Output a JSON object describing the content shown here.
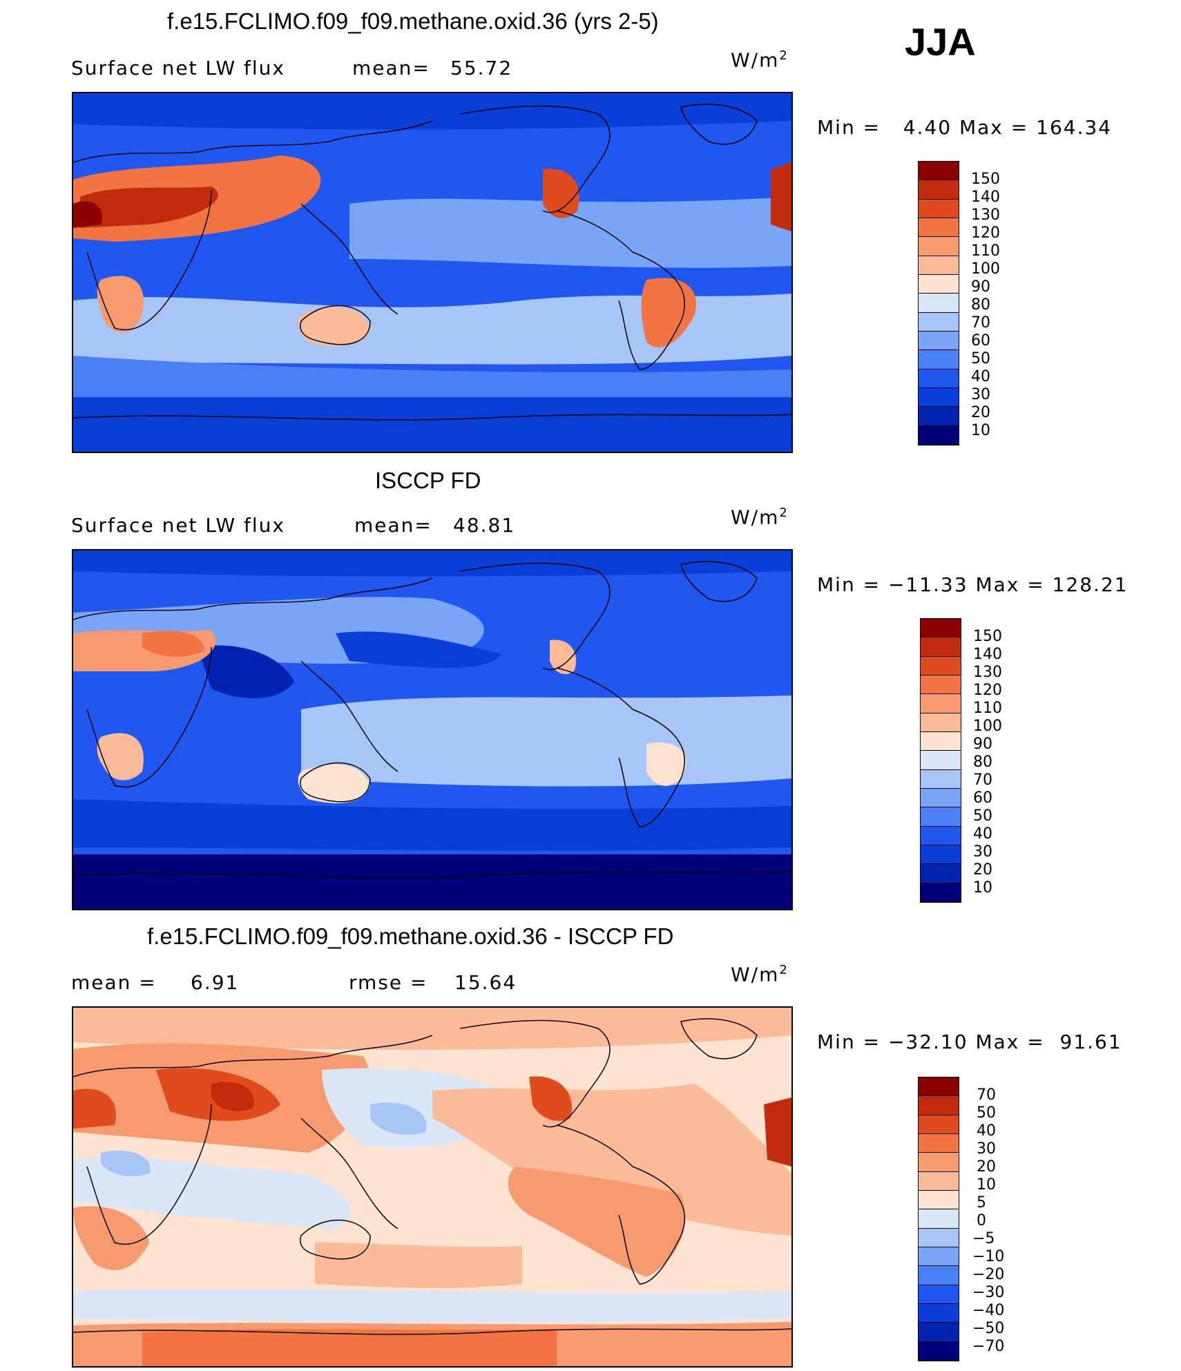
{
  "season": "JJA",
  "colors": {
    "seq": [
      "#00007a",
      "#0024b0",
      "#0a3ed8",
      "#1f57f0",
      "#4a80f5",
      "#7aa5f7",
      "#a8c5f8",
      "#d8e6f8",
      "#fde3d0",
      "#fbbb98",
      "#f89a70",
      "#f27443",
      "#e04b1e",
      "#c22c0c",
      "#8c0000"
    ],
    "diff": [
      "#00007a",
      "#0024b0",
      "#0a3ed8",
      "#1f57f0",
      "#4a80f5",
      "#7aa5f7",
      "#a8c5f8",
      "#d8e6f8",
      "#fde3d0",
      "#fbbb98",
      "#f89a70",
      "#f27443",
      "#e04b1e",
      "#c22c0c",
      "#8c0000"
    ]
  },
  "panels": [
    {
      "title": "f.e15.FCLIMO.f09_f09.methane.oxid.36 (yrs 2-5)",
      "left_label": "Surface net LW flux",
      "mid_label": "mean=",
      "mid_value": "55.72",
      "units": "W/m",
      "units_sup": "2",
      "minmax": "Min =   4.40 Max = 164.34",
      "colorbar_labels": [
        "150",
        "140",
        "130",
        "120",
        "110",
        "100",
        "90",
        "80",
        "70",
        "60",
        "50",
        "40",
        "30",
        "20",
        "10"
      ]
    },
    {
      "title": "ISCCP FD",
      "left_label": "Surface net LW flux",
      "mid_label": "mean=",
      "mid_value": "48.81",
      "units": "W/m",
      "units_sup": "2",
      "minmax": "Min = −11.33 Max = 128.21",
      "colorbar_labels": [
        "150",
        "140",
        "130",
        "120",
        "110",
        "100",
        "90",
        "80",
        "70",
        "60",
        "50",
        "40",
        "30",
        "20",
        "10"
      ]
    },
    {
      "title": "f.e15.FCLIMO.f09_f09.methane.oxid.36 - ISCCP FD",
      "left_label": "mean =",
      "left_value": "6.91",
      "mid_label": "rmse =",
      "mid_value": "15.64",
      "units": "W/m",
      "units_sup": "2",
      "minmax": "Min = −32.10 Max =  91.61",
      "colorbar_labels": [
        "70",
        "50",
        "40",
        "30",
        "20",
        "10",
        "5",
        "0",
        "−5",
        "−10",
        "−20",
        "−30",
        "−40",
        "−50",
        "−70"
      ]
    }
  ]
}
